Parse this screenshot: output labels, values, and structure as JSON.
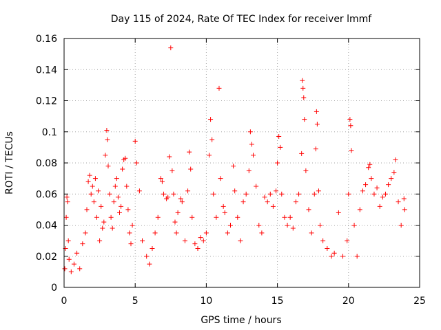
{
  "chart_data": {
    "type": "scatter",
    "title": "Day 115 of 2024, Rate Of TEC Index for receiver lmmf",
    "xlabel": "GPS time / hours",
    "ylabel": "ROTI / TECUs",
    "xlim": [
      0,
      25
    ],
    "ylim": [
      0,
      0.16
    ],
    "x_ticks": [
      0,
      5,
      10,
      15,
      20,
      25
    ],
    "x_tick_labels": [
      "0",
      "5",
      "10",
      "15",
      "20",
      "25"
    ],
    "y_ticks": [
      0,
      0.02,
      0.04,
      0.06,
      0.08,
      0.1,
      0.12,
      0.14,
      0.16
    ],
    "y_tick_labels": [
      "0",
      "0.02",
      "0.04",
      "0.06",
      "0.08",
      "0.1",
      "0.12",
      "0.14",
      "0.16"
    ],
    "grid": true,
    "marker": "+",
    "series": [
      {
        "name": "ROTI",
        "color": "#ff0000",
        "points": [
          [
            0.05,
            0.012
          ],
          [
            0.1,
            0.025
          ],
          [
            0.15,
            0.045
          ],
          [
            0.2,
            0.058
          ],
          [
            0.25,
            0.055
          ],
          [
            0.3,
            0.03
          ],
          [
            0.35,
            0.018
          ],
          [
            0.5,
            0.01
          ],
          [
            0.7,
            0.015
          ],
          [
            0.9,
            0.022
          ],
          [
            1.1,
            0.012
          ],
          [
            1.3,
            0.028
          ],
          [
            1.5,
            0.035
          ],
          [
            1.6,
            0.05
          ],
          [
            1.7,
            0.068
          ],
          [
            1.8,
            0.072
          ],
          [
            1.9,
            0.06
          ],
          [
            2.0,
            0.065
          ],
          [
            2.1,
            0.055
          ],
          [
            2.2,
            0.07
          ],
          [
            2.3,
            0.045
          ],
          [
            2.4,
            0.062
          ],
          [
            2.5,
            0.03
          ],
          [
            2.6,
            0.052
          ],
          [
            2.7,
            0.038
          ],
          [
            2.8,
            0.042
          ],
          [
            2.9,
            0.085
          ],
          [
            3.0,
            0.101
          ],
          [
            3.05,
            0.095
          ],
          [
            3.1,
            0.078
          ],
          [
            3.2,
            0.06
          ],
          [
            3.3,
            0.045
          ],
          [
            3.4,
            0.038
          ],
          [
            3.5,
            0.055
          ],
          [
            3.6,
            0.065
          ],
          [
            3.7,
            0.07
          ],
          [
            3.8,
            0.058
          ],
          [
            3.9,
            0.048
          ],
          [
            4.0,
            0.052
          ],
          [
            4.1,
            0.076
          ],
          [
            4.2,
            0.082
          ],
          [
            4.3,
            0.083
          ],
          [
            4.4,
            0.065
          ],
          [
            4.5,
            0.05
          ],
          [
            4.6,
            0.035
          ],
          [
            4.7,
            0.028
          ],
          [
            4.8,
            0.04
          ],
          [
            5.0,
            0.094
          ],
          [
            5.1,
            0.08
          ],
          [
            5.3,
            0.062
          ],
          [
            5.5,
            0.03
          ],
          [
            5.8,
            0.02
          ],
          [
            6.0,
            0.015
          ],
          [
            6.2,
            0.025
          ],
          [
            6.4,
            0.035
          ],
          [
            6.6,
            0.045
          ],
          [
            6.8,
            0.07
          ],
          [
            6.9,
            0.068
          ],
          [
            7.0,
            0.06
          ],
          [
            7.2,
            0.057
          ],
          [
            7.3,
            0.058
          ],
          [
            7.4,
            0.084
          ],
          [
            7.5,
            0.154
          ],
          [
            7.6,
            0.075
          ],
          [
            7.7,
            0.06
          ],
          [
            7.8,
            0.042
          ],
          [
            7.9,
            0.035
          ],
          [
            8.0,
            0.048
          ],
          [
            8.2,
            0.057
          ],
          [
            8.3,
            0.055
          ],
          [
            8.5,
            0.03
          ],
          [
            8.7,
            0.062
          ],
          [
            8.8,
            0.087
          ],
          [
            8.9,
            0.076
          ],
          [
            9.0,
            0.045
          ],
          [
            9.2,
            0.028
          ],
          [
            9.4,
            0.025
          ],
          [
            9.6,
            0.032
          ],
          [
            9.8,
            0.03
          ],
          [
            10.0,
            0.035
          ],
          [
            10.2,
            0.085
          ],
          [
            10.3,
            0.108
          ],
          [
            10.4,
            0.095
          ],
          [
            10.5,
            0.06
          ],
          [
            10.7,
            0.045
          ],
          [
            10.9,
            0.128
          ],
          [
            11.0,
            0.07
          ],
          [
            11.2,
            0.052
          ],
          [
            11.3,
            0.048
          ],
          [
            11.5,
            0.035
          ],
          [
            11.7,
            0.04
          ],
          [
            11.9,
            0.078
          ],
          [
            12.0,
            0.062
          ],
          [
            12.2,
            0.045
          ],
          [
            12.4,
            0.03
          ],
          [
            12.6,
            0.055
          ],
          [
            12.8,
            0.06
          ],
          [
            13.0,
            0.075
          ],
          [
            13.1,
            0.1
          ],
          [
            13.2,
            0.092
          ],
          [
            13.3,
            0.085
          ],
          [
            13.5,
            0.065
          ],
          [
            13.7,
            0.04
          ],
          [
            13.9,
            0.035
          ],
          [
            14.1,
            0.058
          ],
          [
            14.3,
            0.055
          ],
          [
            14.5,
            0.06
          ],
          [
            14.7,
            0.052
          ],
          [
            14.9,
            0.062
          ],
          [
            15.0,
            0.08
          ],
          [
            15.1,
            0.097
          ],
          [
            15.2,
            0.09
          ],
          [
            15.3,
            0.06
          ],
          [
            15.5,
            0.045
          ],
          [
            15.7,
            0.04
          ],
          [
            15.9,
            0.045
          ],
          [
            16.1,
            0.038
          ],
          [
            16.3,
            0.055
          ],
          [
            16.5,
            0.06
          ],
          [
            16.7,
            0.086
          ],
          [
            16.75,
            0.133
          ],
          [
            16.8,
            0.128
          ],
          [
            16.85,
            0.122
          ],
          [
            16.9,
            0.108
          ],
          [
            17.0,
            0.075
          ],
          [
            17.2,
            0.05
          ],
          [
            17.4,
            0.035
          ],
          [
            17.6,
            0.06
          ],
          [
            17.7,
            0.089
          ],
          [
            17.75,
            0.113
          ],
          [
            17.8,
            0.105
          ],
          [
            17.9,
            0.062
          ],
          [
            18.0,
            0.04
          ],
          [
            18.2,
            0.03
          ],
          [
            18.5,
            0.025
          ],
          [
            18.8,
            0.02
          ],
          [
            19.0,
            0.022
          ],
          [
            19.3,
            0.048
          ],
          [
            19.6,
            0.02
          ],
          [
            19.9,
            0.03
          ],
          [
            20.0,
            0.06
          ],
          [
            20.1,
            0.108
          ],
          [
            20.15,
            0.104
          ],
          [
            20.2,
            0.088
          ],
          [
            20.4,
            0.04
          ],
          [
            20.6,
            0.02
          ],
          [
            20.8,
            0.05
          ],
          [
            21.0,
            0.062
          ],
          [
            21.2,
            0.066
          ],
          [
            21.4,
            0.077
          ],
          [
            21.5,
            0.079
          ],
          [
            21.6,
            0.07
          ],
          [
            21.8,
            0.06
          ],
          [
            22.0,
            0.064
          ],
          [
            22.2,
            0.052
          ],
          [
            22.4,
            0.058
          ],
          [
            22.6,
            0.06
          ],
          [
            22.8,
            0.066
          ],
          [
            23.0,
            0.07
          ],
          [
            23.2,
            0.074
          ],
          [
            23.3,
            0.082
          ],
          [
            23.5,
            0.055
          ],
          [
            23.7,
            0.04
          ],
          [
            23.9,
            0.057
          ],
          [
            23.95,
            0.05
          ]
        ]
      }
    ]
  }
}
